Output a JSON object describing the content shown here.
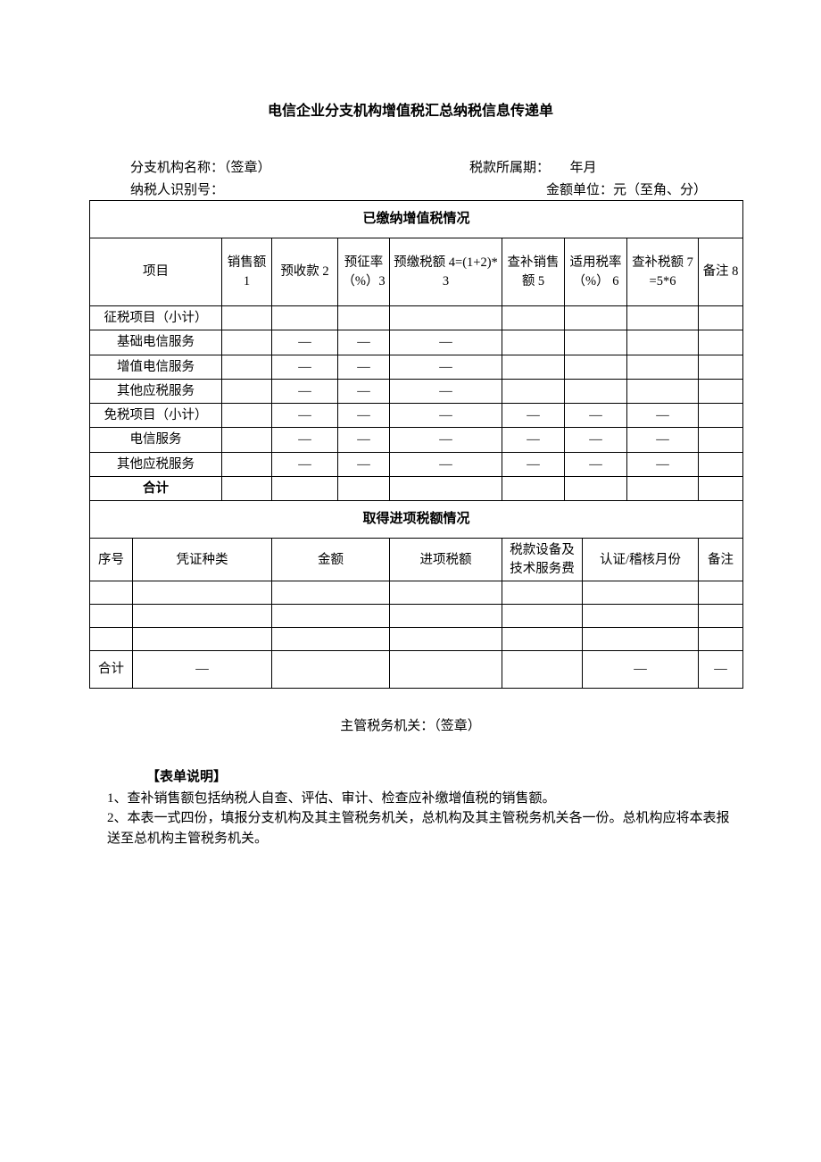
{
  "title": "电信企业分支机构增值税汇总纳税信息传递单",
  "meta": {
    "branch_label": "分支机构名称：（签章）",
    "period_label": "税款所属期：",
    "period_value": "年月",
    "taxpayer_id_label": "纳税人识别号：",
    "unit_label": "金额单位：元（至角、分）"
  },
  "section1": {
    "header": "已缴纳增值税情况",
    "cols": {
      "c0": "项目",
      "c1": "销售额 1",
      "c2": "预收款 2",
      "c3": "预征率（%）3",
      "c4": "预缴税额 4=(1+2)*3",
      "c5": "查补销售额 5",
      "c6": "适用税率（%） 6",
      "c7": "查补税额 7=5*6",
      "c8": "备注 8"
    },
    "rows": [
      {
        "label": "征税项目（小计）",
        "c1": "",
        "c2": "",
        "c3": "",
        "c4": "",
        "c5": "",
        "c6": "",
        "c7": "",
        "c8": ""
      },
      {
        "label": "基础电信服务",
        "c1": "",
        "c2": "—",
        "c3": "—",
        "c4": "—",
        "c5": "",
        "c6": "",
        "c7": "",
        "c8": ""
      },
      {
        "label": "增值电信服务",
        "c1": "",
        "c2": "—",
        "c3": "—",
        "c4": "—",
        "c5": "",
        "c6": "",
        "c7": "",
        "c8": ""
      },
      {
        "label": "其他应税服务",
        "c1": "",
        "c2": "—",
        "c3": "—",
        "c4": "—",
        "c5": "",
        "c6": "",
        "c7": "",
        "c8": ""
      },
      {
        "label": "免税项目（小计）",
        "c1": "",
        "c2": "—",
        "c3": "—",
        "c4": "—",
        "c5": "—",
        "c6": "—",
        "c7": "—",
        "c8": ""
      },
      {
        "label": "电信服务",
        "c1": "",
        "c2": "—",
        "c3": "—",
        "c4": "—",
        "c5": "—",
        "c6": "—",
        "c7": "—",
        "c8": ""
      },
      {
        "label": "其他应税服务",
        "c1": "",
        "c2": "—",
        "c3": "—",
        "c4": "—",
        "c5": "—",
        "c6": "—",
        "c7": "—",
        "c8": ""
      },
      {
        "label": "合计",
        "bold": true,
        "c1": "",
        "c2": "",
        "c3": "",
        "c4": "",
        "c5": "",
        "c6": "",
        "c7": "",
        "c8": ""
      }
    ]
  },
  "section2": {
    "header": "取得进项税额情况",
    "cols": {
      "c0": "序号",
      "c1": "凭证种类",
      "c2": "金额",
      "c3": "进项税额",
      "c4": "税款设备及技术服务费",
      "c5": "认证/稽核月份",
      "c6": "备注"
    },
    "rows": [
      {
        "c0": "",
        "c1": "",
        "c2": "",
        "c3": "",
        "c4": "",
        "c5": "",
        "c6": ""
      },
      {
        "c0": "",
        "c1": "",
        "c2": "",
        "c3": "",
        "c4": "",
        "c5": "",
        "c6": ""
      },
      {
        "c0": "",
        "c1": "",
        "c2": "",
        "c3": "",
        "c4": "",
        "c5": "",
        "c6": ""
      }
    ],
    "total": {
      "c0": "合计",
      "c1": "—",
      "c2": "",
      "c3": "",
      "c4": "",
      "c5": "—",
      "c6": "—"
    }
  },
  "footer": "主管税务机关：（签章）",
  "desc": {
    "title": "【表单说明】",
    "body": "1、查补销售额包括纳税人自查、评估、审计、检查应补缴增值税的销售额。\n2、本表一式四份，填报分支机构及其主管税务机关，总机构及其主管税务机关各一份。总机构应将本表报送至总机构主管税务机关。"
  }
}
